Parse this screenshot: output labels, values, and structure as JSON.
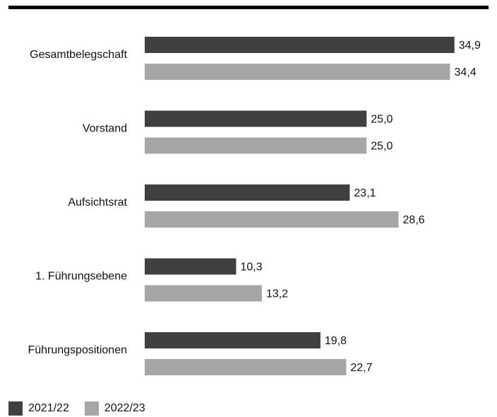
{
  "chart_data": {
    "type": "bar",
    "orientation": "horizontal",
    "categories": [
      "Gesamtbelegschaft",
      "Vorstand",
      "Aufsichtsrat",
      "1. Führungsebene",
      "Führungspositionen"
    ],
    "series": [
      {
        "name": "2021/22",
        "values": [
          34.9,
          25.0,
          23.1,
          10.3,
          19.8
        ],
        "value_labels": [
          "34,9",
          "25,0",
          "23,1",
          "10,3",
          "19,8"
        ],
        "color": "#404040"
      },
      {
        "name": "2022/23",
        "values": [
          34.4,
          25.0,
          28.6,
          13.2,
          22.7
        ],
        "value_labels": [
          "34,4",
          "25,0",
          "28,6",
          "13,2",
          "22,7"
        ],
        "color": "#a6a6a6"
      }
    ],
    "xlim": [
      0,
      35
    ],
    "grid": false,
    "legend_position": "bottom-left"
  },
  "colors": {
    "top_rule": "#000000"
  }
}
